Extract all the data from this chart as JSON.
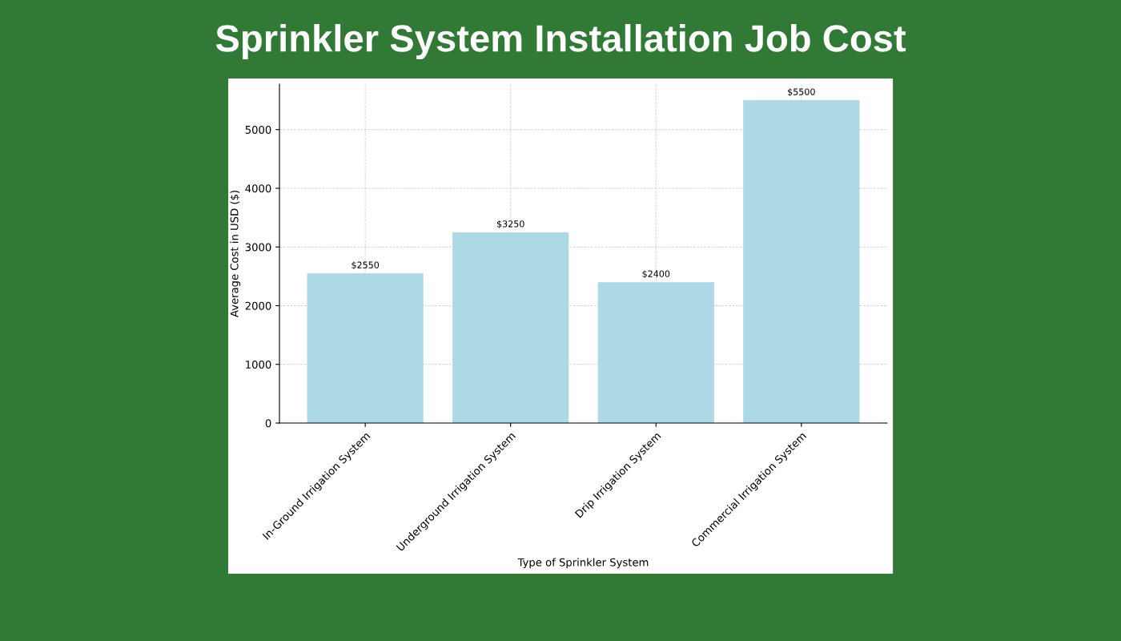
{
  "chart_data": {
    "type": "bar",
    "title": "Sprinkler System Installation Job Cost",
    "xlabel": "Type of Sprinkler System",
    "ylabel": "Average Cost in USD ($)",
    "categories": [
      "In-Ground Irrigation System",
      "Underground Irrigation System",
      "Drip Irrigation System",
      "Commercial Irrigation System"
    ],
    "values": [
      2550,
      3250,
      2400,
      5500
    ],
    "value_labels": [
      "$2550",
      "$3250",
      "$2400",
      "$5500"
    ],
    "color": "#add8e6",
    "ylim": [
      0,
      5775
    ],
    "yticks": [
      0,
      1000,
      2000,
      3000,
      4000,
      5000
    ],
    "grid": true
  }
}
